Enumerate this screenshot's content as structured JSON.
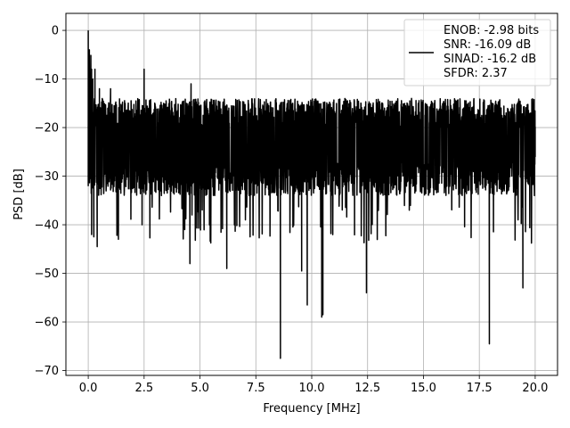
{
  "chart_data": {
    "type": "line",
    "title": "",
    "xlabel": "Frequency [MHz]",
    "ylabel": "PSD [dB]",
    "xlim": [
      -1.0,
      21.0
    ],
    "ylim": [
      -71.0,
      3.5
    ],
    "xticks": [
      0.0,
      2.5,
      5.0,
      7.5,
      10.0,
      12.5,
      15.0,
      17.5,
      20.0
    ],
    "xtick_labels": [
      "0.0",
      "2.5",
      "5.0",
      "7.5",
      "10.0",
      "12.5",
      "15.0",
      "17.5",
      "20.0"
    ],
    "yticks": [
      0,
      -10,
      -20,
      -30,
      -40,
      -50,
      -60,
      -70
    ],
    "ytick_labels": [
      "0",
      "−10",
      "−20",
      "−30",
      "−40",
      "−50",
      "−60",
      "−70"
    ],
    "grid": true,
    "legend_position": "top-right",
    "line_color": "#000000",
    "series": [
      {
        "name": "",
        "legend_lines": [
          "ENOB: -2.98 bits",
          "SNR: -16.09 dB",
          "SINAD: -16.2 dB",
          "SFDR: 2.37"
        ],
        "x_range": [
          0.0,
          20.0
        ],
        "typical_band": [
          -34,
          -14
        ],
        "x": [
          0.0,
          0.02,
          0.05,
          0.1,
          0.15,
          0.2,
          0.25,
          0.3,
          0.4,
          0.5,
          1.0,
          1.35,
          2.5,
          4.55,
          4.6,
          6.2,
          8.6,
          9.55,
          9.8,
          10.45,
          10.5,
          12.45,
          17.95,
          19.45,
          20.0
        ],
        "values": [
          0.0,
          -6.0,
          -4.0,
          -13.0,
          -8.0,
          -10.0,
          -42.5,
          -8.0,
          -44.5,
          -12.0,
          -12.0,
          -43.0,
          -8.0,
          -48.0,
          -11.0,
          -49.0,
          -67.5,
          -49.5,
          -56.5,
          -59.0,
          -58.5,
          -54.0,
          -64.5,
          -53.0,
          -26.0
        ]
      }
    ]
  }
}
